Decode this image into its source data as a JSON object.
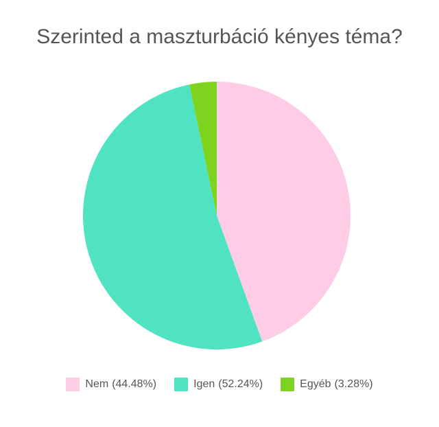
{
  "chart_data": {
    "type": "pie",
    "title": "Szerinted a maszturbáció kényes téma?",
    "categories": [
      "Nem",
      "Igen",
      "Egyéb"
    ],
    "values": [
      44.48,
      52.24,
      3.28
    ],
    "value_labels": [
      "(44.48%)",
      "(52.24%)",
      "(3.28%)"
    ],
    "colors": [
      "#ffcce6",
      "#50e3c2",
      "#7ed321"
    ],
    "legend": "bottom"
  }
}
